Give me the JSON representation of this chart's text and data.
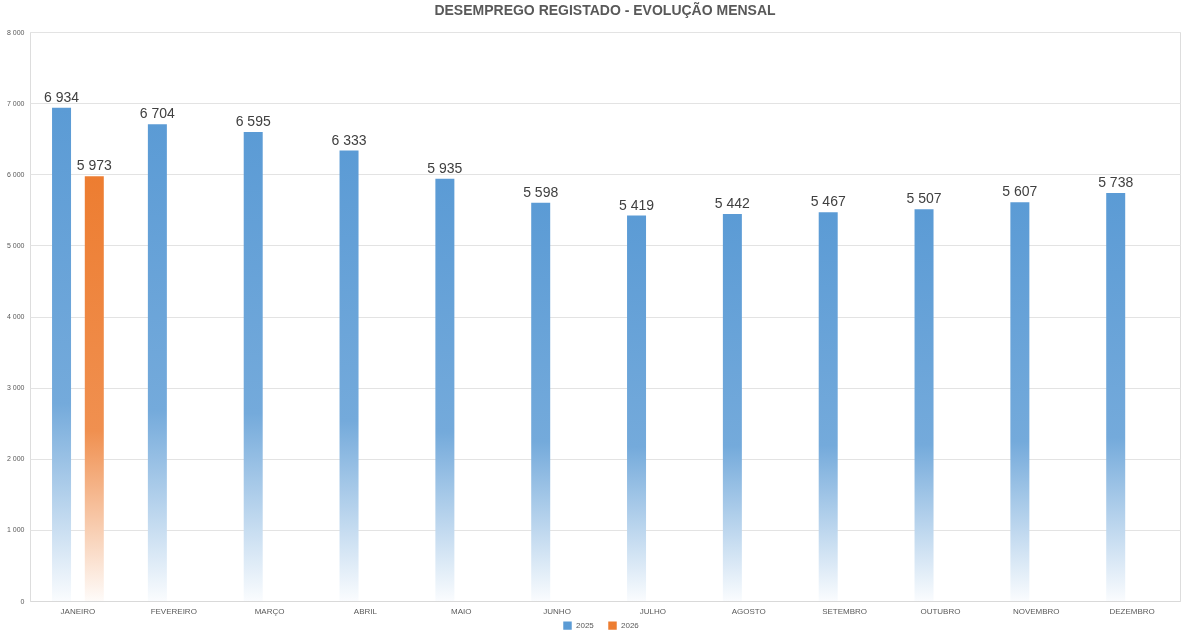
{
  "chart_data": {
    "type": "bar",
    "title": "DESEMPREGO REGISTADO - EVOLUÇÃO MENSAL",
    "categories": [
      "JANEIRO",
      "FEVEREIRO",
      "MARÇO",
      "ABRIL",
      "MAIO",
      "JUNHO",
      "JULHO",
      "AGOSTO",
      "SETEMBRO",
      "OUTUBRO",
      "NOVEMBRO",
      "DEZEMBRO"
    ],
    "series": [
      {
        "name": "2025",
        "color": "#5b9bd5",
        "values": [
          6934,
          6704,
          6595,
          6333,
          5935,
          5598,
          5419,
          5442,
          5467,
          5507,
          5607,
          5738
        ],
        "value_labels": [
          "6 934",
          "6 704",
          "6 595",
          "6 333",
          "5 935",
          "5 598",
          "5 419",
          "5 442",
          "5 467",
          "5 507",
          "5 607",
          "5 738"
        ]
      },
      {
        "name": "2026",
        "color": "#ed7d31",
        "values": [
          5973,
          null,
          null,
          null,
          null,
          null,
          null,
          null,
          null,
          null,
          null,
          null
        ],
        "value_labels": [
          "5 973",
          null,
          null,
          null,
          null,
          null,
          null,
          null,
          null,
          null,
          null,
          null
        ]
      }
    ],
    "ylim": [
      0,
      8000
    ],
    "yticks": [
      0,
      {
        "value": 1000,
        "label": "1 000"
      },
      {
        "value": 2000,
        "label": "2 000"
      },
      {
        "value": 3000,
        "label": "3 000"
      },
      {
        "value": 4000,
        "label": "4 000"
      },
      {
        "value": 5000,
        "label": "5 000"
      },
      {
        "value": 6000,
        "label": "6 000"
      },
      {
        "value": 7000,
        "label": "7 000"
      },
      {
        "value": 8000,
        "label": "8 000"
      }
    ],
    "grid": "y",
    "legend": "bottom"
  }
}
